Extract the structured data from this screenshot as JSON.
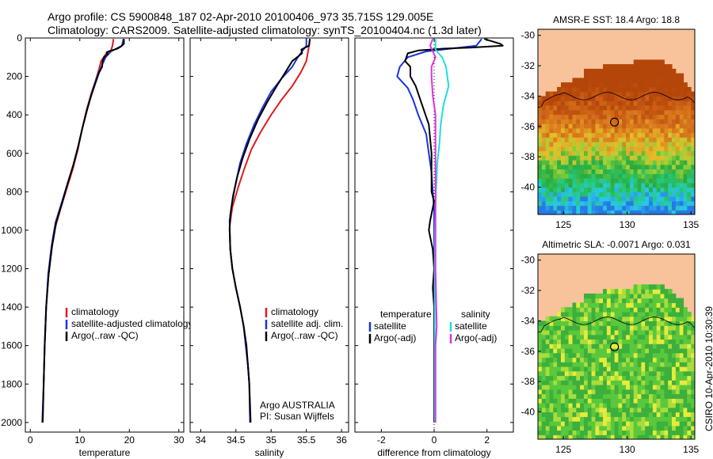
{
  "titles": {
    "line1": "Argo profile: CS 5900848_187 02-Apr-2010 20100406_973 35.715S 129.005E",
    "line2": "Climatology: CARS2009. Satellite-adjusted climatology: synTS_20100404.nc (1.3d later)"
  },
  "stamp": "CSIRO 10-Apr-2010 10:30:39",
  "colors": {
    "climatology": "#dd1c1c",
    "satellite": "#1a33dd",
    "argo": "#000000",
    "cyan": "#22dddd",
    "magenta": "#dd33dd",
    "land": "#f8c39a"
  },
  "chart_data": [
    {
      "type": "line",
      "id": "temperature",
      "xlabel": "temperature",
      "xlim": [
        -1,
        31
      ],
      "ylim": [
        2050,
        0
      ],
      "xticks": [
        0,
        10,
        20,
        30
      ],
      "yticks": [
        0,
        200,
        400,
        600,
        800,
        1000,
        1200,
        1400,
        1600,
        1800,
        2000
      ],
      "legend": {
        "placement": "lower-middle",
        "entries": [
          "climatology",
          "satellite-adjusted climatology",
          "Argo(..raw -QC)"
        ]
      },
      "series": [
        {
          "name": "climatology",
          "color": "#dd1c1c",
          "points": [
            [
              16.8,
              5
            ],
            [
              16.6,
              40
            ],
            [
              16.3,
              65
            ],
            [
              15.2,
              85
            ],
            [
              14.3,
              120
            ],
            [
              13.9,
              160
            ],
            [
              13.2,
              220
            ],
            [
              12.3,
              290
            ],
            [
              11.3,
              380
            ],
            [
              10.4,
              480
            ],
            [
              9.6,
              580
            ],
            [
              8.6,
              680
            ],
            [
              7.4,
              780
            ],
            [
              6.2,
              880
            ],
            [
              5.1,
              980
            ],
            [
              4.3,
              1100
            ],
            [
              3.6,
              1250
            ],
            [
              3.2,
              1400
            ],
            [
              2.9,
              1600
            ],
            [
              2.7,
              1800
            ],
            [
              2.5,
              2000
            ]
          ]
        },
        {
          "name": "satellite-adjusted climatology",
          "color": "#1a33dd",
          "points": [
            [
              18.8,
              5
            ],
            [
              18.5,
              40
            ],
            [
              16.3,
              70
            ],
            [
              15.2,
              100
            ],
            [
              14.5,
              140
            ],
            [
              13.5,
              200
            ],
            [
              12.6,
              270
            ],
            [
              11.6,
              360
            ],
            [
              10.6,
              460
            ],
            [
              9.7,
              560
            ],
            [
              8.7,
              660
            ],
            [
              7.5,
              760
            ],
            [
              6.3,
              860
            ],
            [
              5.1,
              960
            ],
            [
              4.3,
              1080
            ],
            [
              3.6,
              1230
            ],
            [
              3.2,
              1400
            ],
            [
              2.9,
              1600
            ],
            [
              2.7,
              1800
            ],
            [
              2.4,
              2000
            ]
          ]
        },
        {
          "name": "Argo(..raw -QC)",
          "color": "#000000",
          "points": [
            [
              18.9,
              5
            ],
            [
              18.9,
              30
            ],
            [
              18.3,
              45
            ],
            [
              17.6,
              55
            ],
            [
              16.4,
              65
            ],
            [
              15.8,
              70
            ],
            [
              15.4,
              75
            ],
            [
              15.6,
              85
            ],
            [
              14.9,
              100
            ],
            [
              14.6,
              120
            ],
            [
              14.5,
              150
            ],
            [
              13.9,
              180
            ],
            [
              13.2,
              230
            ],
            [
              12.3,
              300
            ],
            [
              11.4,
              380
            ],
            [
              10.5,
              470
            ],
            [
              9.6,
              570
            ],
            [
              8.7,
              660
            ],
            [
              7.5,
              760
            ],
            [
              6.4,
              860
            ],
            [
              5.2,
              960
            ],
            [
              4.4,
              1080
            ],
            [
              3.7,
              1230
            ],
            [
              3.2,
              1400
            ],
            [
              2.9,
              1600
            ],
            [
              2.7,
              1800
            ],
            [
              2.5,
              2000
            ]
          ]
        }
      ]
    },
    {
      "type": "line",
      "id": "salinity",
      "xlabel": "salinity",
      "xlim": [
        33.85,
        36.1
      ],
      "ylim": [
        2050,
        0
      ],
      "xticks": [
        34,
        34.5,
        35,
        35.5,
        36
      ],
      "xtick_labels": [
        "34",
        "34.5",
        "35",
        "35.5",
        "36"
      ],
      "legend": {
        "placement": "lower-right",
        "entries": [
          "climatology",
          "satellite adj. clim.",
          "Argo(..raw -QC)"
        ]
      },
      "annotation": [
        "Argo AUSTRALIA",
        "PI: Susan Wijffels"
      ],
      "series": [
        {
          "name": "climatology",
          "color": "#dd1c1c",
          "points": [
            [
              35.55,
              5
            ],
            [
              35.53,
              60
            ],
            [
              35.5,
              120
            ],
            [
              35.42,
              180
            ],
            [
              35.3,
              250
            ],
            [
              35.15,
              320
            ],
            [
              35.0,
              400
            ],
            [
              34.85,
              490
            ],
            [
              34.72,
              580
            ],
            [
              34.62,
              680
            ],
            [
              34.53,
              780
            ],
            [
              34.45,
              880
            ],
            [
              34.41,
              980
            ],
            [
              34.42,
              1100
            ],
            [
              34.45,
              1200
            ],
            [
              34.5,
              1300
            ],
            [
              34.56,
              1400
            ],
            [
              34.61,
              1500
            ],
            [
              34.64,
              1600
            ],
            [
              34.67,
              1700
            ],
            [
              34.69,
              1800
            ],
            [
              34.7,
              2000
            ]
          ]
        },
        {
          "name": "satellite adj. clim.",
          "color": "#1a33dd",
          "points": [
            [
              35.5,
              5
            ],
            [
              35.5,
              40
            ],
            [
              35.44,
              70
            ],
            [
              35.38,
              100
            ],
            [
              35.3,
              150
            ],
            [
              35.15,
              210
            ],
            [
              35.0,
              280
            ],
            [
              34.88,
              360
            ],
            [
              34.76,
              450
            ],
            [
              34.65,
              550
            ],
            [
              34.56,
              650
            ],
            [
              34.5,
              750
            ],
            [
              34.45,
              850
            ],
            [
              34.41,
              950
            ],
            [
              34.42,
              1100
            ],
            [
              34.45,
              1200
            ],
            [
              34.5,
              1300
            ],
            [
              34.56,
              1400
            ],
            [
              34.61,
              1500
            ],
            [
              34.64,
              1600
            ],
            [
              34.67,
              1700
            ],
            [
              34.69,
              1800
            ],
            [
              34.7,
              2000
            ]
          ]
        },
        {
          "name": "Argo(..raw -QC)",
          "color": "#000000",
          "points": [
            [
              35.55,
              5
            ],
            [
              35.54,
              40
            ],
            [
              35.43,
              60
            ],
            [
              35.44,
              80
            ],
            [
              35.3,
              120
            ],
            [
              35.2,
              180
            ],
            [
              35.08,
              250
            ],
            [
              34.95,
              330
            ],
            [
              34.82,
              420
            ],
            [
              34.7,
              520
            ],
            [
              34.6,
              620
            ],
            [
              34.52,
              720
            ],
            [
              34.46,
              820
            ],
            [
              34.42,
              920
            ],
            [
              34.41,
              1000
            ],
            [
              34.42,
              1100
            ],
            [
              34.45,
              1200
            ],
            [
              34.5,
              1300
            ],
            [
              34.56,
              1400
            ],
            [
              34.61,
              1500
            ],
            [
              34.65,
              1600
            ],
            [
              34.67,
              1700
            ],
            [
              34.69,
              1800
            ],
            [
              34.71,
              2000
            ]
          ]
        }
      ]
    },
    {
      "type": "line",
      "id": "difference",
      "xlabel": "difference from climatology",
      "xlim": [
        -3,
        3
      ],
      "ylim": [
        2050,
        0
      ],
      "xticks": [
        -2,
        0,
        2
      ],
      "legend": {
        "placement": "lower",
        "groups": [
          [
            "temperature",
            "satellite",
            "Argo(-adj)"
          ],
          [
            "salinity",
            "satellite",
            "Argo(-adj)"
          ]
        ]
      },
      "series": [
        {
          "name": "temperature satellite",
          "color": "#1a33dd",
          "points": [
            [
              1.8,
              5
            ],
            [
              1.6,
              40
            ],
            [
              -0.3,
              70
            ],
            [
              -1.0,
              100
            ],
            [
              -1.3,
              150
            ],
            [
              -1.4,
              200
            ],
            [
              -1.0,
              260
            ],
            [
              -0.8,
              320
            ],
            [
              -0.6,
              400
            ],
            [
              -0.3,
              500
            ],
            [
              -0.2,
              600
            ],
            [
              -0.1,
              700
            ],
            [
              -0.05,
              800
            ],
            [
              0,
              900
            ],
            [
              0,
              1000
            ],
            [
              0,
              1200
            ],
            [
              0,
              1400
            ],
            [
              0,
              1600
            ],
            [
              0,
              1800
            ],
            [
              0,
              2000
            ]
          ]
        },
        {
          "name": "temperature Argo(-adj)",
          "color": "#000000",
          "points": [
            [
              1.9,
              5
            ],
            [
              2.5,
              30
            ],
            [
              2.6,
              40
            ],
            [
              1.4,
              50
            ],
            [
              0.4,
              55
            ],
            [
              -0.6,
              65
            ],
            [
              -1.0,
              80
            ],
            [
              -1.1,
              120
            ],
            [
              -0.9,
              150
            ],
            [
              -0.9,
              200
            ],
            [
              -0.7,
              250
            ],
            [
              -0.5,
              330
            ],
            [
              -0.2,
              450
            ],
            [
              -0.1,
              600
            ],
            [
              -0.1,
              800
            ],
            [
              0,
              850
            ],
            [
              -0.15,
              950
            ],
            [
              -0.2,
              1000
            ],
            [
              -0.05,
              1100
            ],
            [
              0,
              1200
            ],
            [
              -0.05,
              1300
            ],
            [
              0,
              1400
            ],
            [
              0,
              1600
            ],
            [
              0,
              1800
            ],
            [
              0,
              2000
            ]
          ]
        },
        {
          "name": "salinity satellite",
          "color": "#22dddd",
          "points": [
            [
              0.05,
              5
            ],
            [
              0.05,
              60
            ],
            [
              0.3,
              100
            ],
            [
              0.45,
              150
            ],
            [
              0.55,
              250
            ],
            [
              0.35,
              350
            ],
            [
              0.25,
              450
            ],
            [
              0.2,
              550
            ],
            [
              0.12,
              650
            ],
            [
              0.07,
              800
            ],
            [
              0.03,
              1000
            ],
            [
              0.02,
              1200
            ],
            [
              0.02,
              1500
            ],
            [
              0.02,
              1800
            ],
            [
              0.02,
              2000
            ]
          ]
        },
        {
          "name": "salinity Argo(-adj)",
          "color": "#dd33dd",
          "points": [
            [
              -0.05,
              5
            ],
            [
              -0.15,
              40
            ],
            [
              -0.05,
              70
            ],
            [
              0.05,
              100
            ],
            [
              -0.1,
              150
            ],
            [
              -0.1,
              200
            ],
            [
              -0.05,
              300
            ],
            [
              0.05,
              400
            ],
            [
              0.05,
              600
            ],
            [
              0.05,
              800
            ],
            [
              0.05,
              1000
            ],
            [
              0.05,
              1200
            ],
            [
              0.08,
              1400
            ],
            [
              0.1,
              1500
            ],
            [
              0.05,
              1600
            ],
            [
              0.05,
              1800
            ],
            [
              0.05,
              2000
            ]
          ]
        }
      ]
    },
    {
      "type": "heatmap",
      "id": "sst-map",
      "title": "AMSR-E SST: 18.4  Argo: 18.8",
      "xlim": [
        123,
        135.3
      ],
      "ylim": [
        -41.8,
        -29.6
      ],
      "xticks": [
        125,
        130,
        135
      ],
      "yticks": [
        -30,
        -32,
        -34,
        -36,
        -38,
        -40
      ],
      "argo_position": [
        129.005,
        -35.715
      ]
    },
    {
      "type": "heatmap",
      "id": "sla-map",
      "title": "Altimetric SLA: -0.0071  Argo: 0.031",
      "xlim": [
        123,
        135.3
      ],
      "ylim": [
        -41.8,
        -29.6
      ],
      "xticks": [
        125,
        130,
        135
      ],
      "yticks": [
        -30,
        -32,
        -34,
        -36,
        -38,
        -40
      ],
      "argo_position": [
        129.005,
        -35.715
      ]
    }
  ]
}
